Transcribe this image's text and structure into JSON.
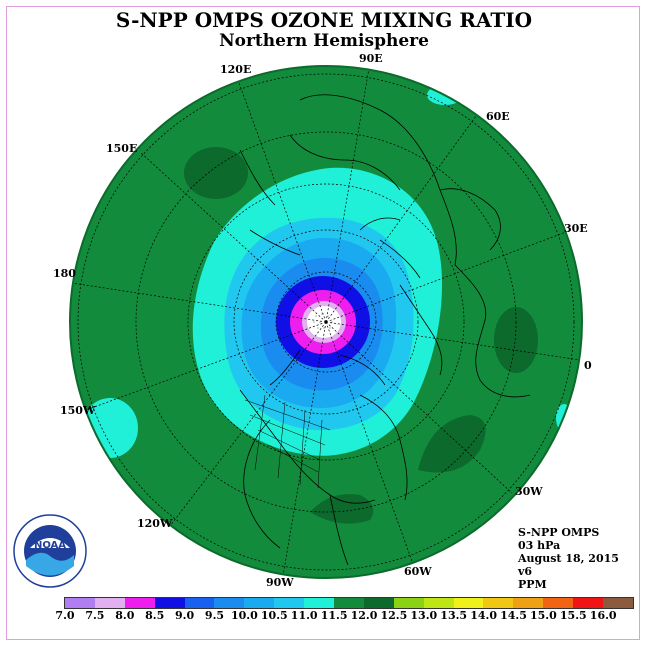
{
  "header": {
    "title": "S-NPP OMPS OZONE MIXING RATIO",
    "subtitle": "Northern Hemisphere"
  },
  "longitude_labels": [
    {
      "id": "90e",
      "text": "90E"
    },
    {
      "id": "60e",
      "text": "60E"
    },
    {
      "id": "120e",
      "text": "120E"
    },
    {
      "id": "150e",
      "text": "150E"
    },
    {
      "id": "30e",
      "text": "30E"
    },
    {
      "id": "180",
      "text": "180"
    },
    {
      "id": "0",
      "text": "0"
    },
    {
      "id": "150w",
      "text": "150W"
    },
    {
      "id": "30w",
      "text": "30W"
    },
    {
      "id": "120w",
      "text": "120W"
    },
    {
      "id": "60w",
      "text": "60W"
    },
    {
      "id": "90w",
      "text": "90W"
    }
  ],
  "info": {
    "instrument": "S-NPP OMPS",
    "level": "03 hPa",
    "date": "August 18, 2015",
    "version": "v6",
    "units": "PPM"
  },
  "logo": {
    "center_text": "NOAA",
    "ring_text": "NATIONAL OCEANIC AND ATMOSPHERIC ADMINISTRATION · U.S. DEPARTMENT OF COMMERCE"
  },
  "colorbar": {
    "ticks": [
      "7.0",
      "7.5",
      "8.0",
      "8.5",
      "9.0",
      "9.5",
      "10.0",
      "10.5",
      "11.0",
      "11.5",
      "12.0",
      "12.5",
      "13.0",
      "13.5",
      "14.0",
      "14.5",
      "15.0",
      "15.5",
      "16.0"
    ],
    "colors": [
      "#b07ef0",
      "#e0b0f0",
      "#ee1eee",
      "#1010e6",
      "#1a60f0",
      "#1a8cf0",
      "#1aaaf0",
      "#20c8f0",
      "#20f0d8",
      "#128c3c",
      "#0b6a2c",
      "#8cd214",
      "#bee614",
      "#f0f01a",
      "#f0c814",
      "#f0a014",
      "#f06414",
      "#f01414",
      "#8c5a3c"
    ]
  },
  "map_data": {
    "projection": "north-polar-stereographic",
    "field": "ozone mixing ratio at 03 hPa",
    "background_value_range": [
      11.0,
      11.5
    ]
  }
}
